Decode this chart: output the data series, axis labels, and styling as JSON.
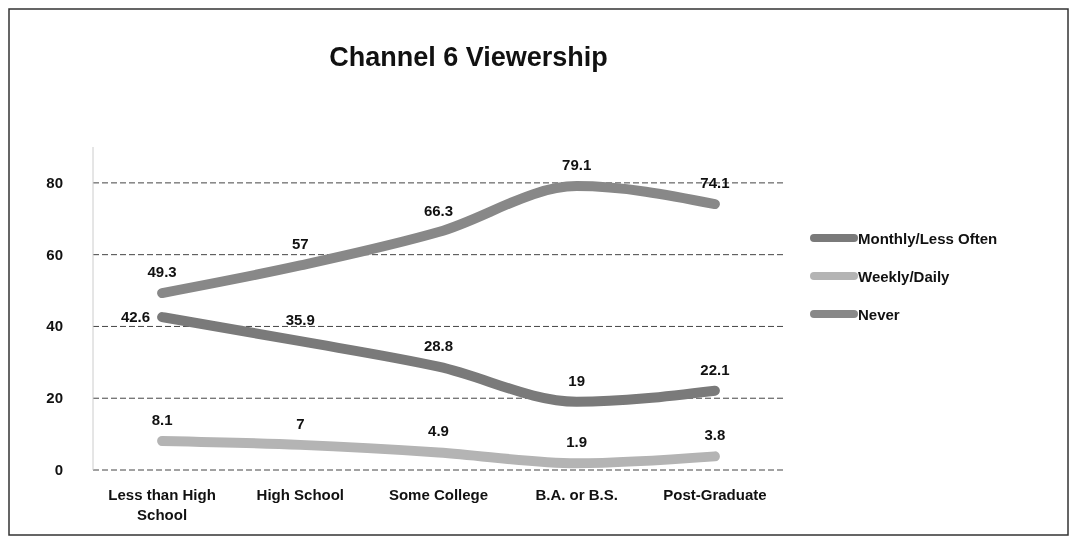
{
  "chart_data": {
    "type": "line",
    "title": "Channel 6 Viewership",
    "categories": [
      "Less than High School",
      "High School",
      "Some College",
      "B.A. or B.S.",
      "Post-Graduate"
    ],
    "series": [
      {
        "name": "Monthly/Less Often",
        "color": "#7a7a7a",
        "values": [
          42.6,
          35.9,
          28.8,
          19,
          22.1
        ]
      },
      {
        "name": "Weekly/Daily",
        "color": "#b4b4b4",
        "values": [
          8.1,
          7,
          4.9,
          1.9,
          3.8
        ]
      },
      {
        "name": "Never",
        "color": "#888888",
        "values": [
          49.3,
          57,
          66.3,
          79.1,
          74.1
        ]
      }
    ],
    "ylim": [
      0,
      90
    ],
    "yticks": [
      0,
      20,
      40,
      60,
      80
    ],
    "grid": "y",
    "legend": "right",
    "data_labels": true,
    "marker": "none",
    "line_style": "solid"
  }
}
